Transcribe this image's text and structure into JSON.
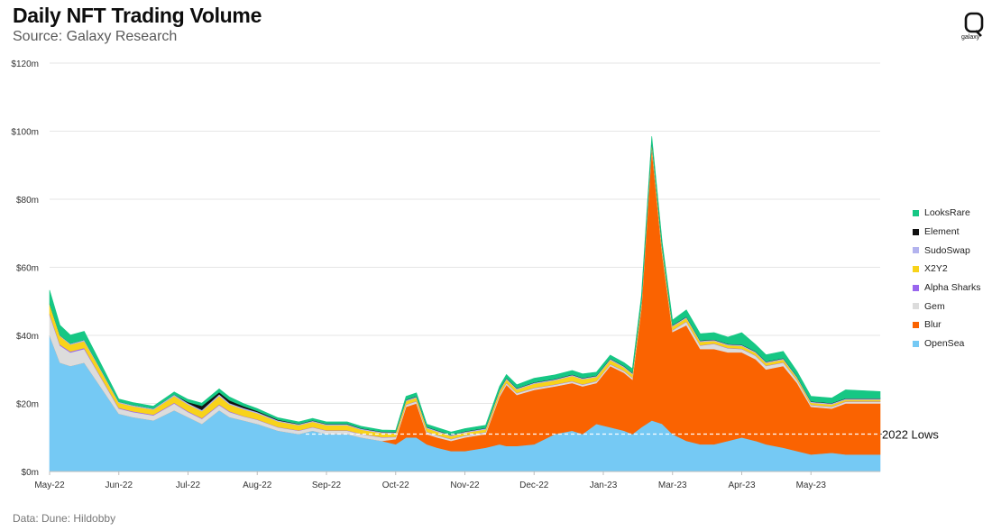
{
  "header": {
    "title": "Daily NFT Trading Volume",
    "subtitle": "Source: Galaxy Research"
  },
  "footer": {
    "data_source": "Data: Dune: Hildobby"
  },
  "logo": {
    "text": "galaxy",
    "icon": "galaxy-logo-icon"
  },
  "chart_data": {
    "type": "area",
    "stacked": true,
    "title": "Daily NFT Trading Volume",
    "subtitle": "Source: Galaxy Research",
    "xlabel": "",
    "ylabel": "",
    "x_tick_labels": [
      "May-22",
      "Jun-22",
      "Jul-22",
      "Aug-22",
      "Sep-22",
      "Oct-22",
      "Nov-22",
      "Dec-22",
      "Jan-23",
      "Mar-23",
      "Apr-23",
      "May-23"
    ],
    "y_tick_labels": [
      "$0m",
      "$20m",
      "$40m",
      "$60m",
      "$80m",
      "$100m",
      "$120m"
    ],
    "ylim": [
      0,
      120
    ],
    "y_unit": "$m",
    "grid": "horizontal",
    "legend_position": "right",
    "x_range": [
      0,
      12
    ],
    "x_ticks": [
      0,
      1,
      2,
      3,
      4,
      5,
      6,
      7,
      8,
      9,
      10,
      11
    ],
    "x": [
      0,
      0.15,
      0.3,
      0.5,
      0.7,
      1.0,
      1.2,
      1.5,
      1.8,
      2.0,
      2.2,
      2.45,
      2.6,
      2.8,
      3.0,
      3.3,
      3.6,
      3.8,
      4.0,
      4.3,
      4.5,
      4.8,
      5.0,
      5.15,
      5.3,
      5.45,
      5.6,
      5.8,
      6.0,
      6.3,
      6.5,
      6.6,
      6.75,
      7.0,
      7.3,
      7.55,
      7.7,
      7.9,
      8.1,
      8.3,
      8.42,
      8.55,
      8.7,
      8.85,
      9.0,
      9.2,
      9.4,
      9.6,
      9.8,
      10.0,
      10.2,
      10.35,
      10.6,
      10.8,
      11.0,
      11.3,
      11.5,
      12.0
    ],
    "series": [
      {
        "name": "OpenSea",
        "color": "#75c9f4",
        "values": [
          40,
          32,
          31,
          32,
          26,
          17,
          16,
          15,
          18,
          16,
          14,
          18,
          16,
          15,
          14,
          12,
          11,
          12,
          11,
          11,
          10,
          9,
          8,
          10,
          10,
          8,
          7,
          6,
          6,
          7,
          8,
          7.5,
          7.5,
          8,
          11,
          12,
          11,
          14,
          13,
          12,
          11,
          13,
          15,
          14,
          11,
          9,
          8,
          8,
          9,
          10,
          9,
          8,
          7,
          6,
          5,
          5.5,
          5,
          5
        ]
      },
      {
        "name": "Blur",
        "color": "#fa6301",
        "values": [
          0,
          0,
          0,
          0,
          0,
          0,
          0,
          0,
          0,
          0,
          0,
          0,
          0,
          0,
          0,
          0,
          0,
          0,
          0,
          0,
          0,
          0,
          1.5,
          9,
          10,
          3,
          3,
          3,
          4,
          4,
          14,
          18,
          15,
          16,
          14,
          14,
          14,
          12,
          18,
          17,
          16,
          35,
          80,
          50,
          30,
          34,
          28,
          28,
          26,
          25,
          24,
          22,
          24,
          20,
          14,
          13,
          15,
          15
        ]
      },
      {
        "name": "Gem",
        "color": "#dcdcdc",
        "values": [
          6,
          5,
          4,
          4,
          3,
          1.5,
          1.5,
          1.5,
          2,
          1.5,
          1.5,
          1.5,
          1.5,
          1.2,
          1.2,
          1,
          1,
          1,
          1,
          1,
          1,
          1,
          0.6,
          0.6,
          0.6,
          0.6,
          0.6,
          0.5,
          0.5,
          0.5,
          0.5,
          0.5,
          0.5,
          0.5,
          0.5,
          0.5,
          0.5,
          0.5,
          0.5,
          0.5,
          0.5,
          0.5,
          0.5,
          0.5,
          0.5,
          1,
          1,
          1.5,
          1.2,
          1,
          1,
          1,
          1,
          0.8,
          0.5,
          0.5,
          0.5,
          0.5
        ]
      },
      {
        "name": "Alpha Sharks",
        "color": "#9966ee",
        "values": [
          0.3,
          0.3,
          0.3,
          0.3,
          0.2,
          0.2,
          0.2,
          0.2,
          0.2,
          0.2,
          0.2,
          0.2,
          0.2,
          0.1,
          0.1,
          0.1,
          0.1,
          0.1,
          0.1,
          0.1,
          0.1,
          0.1,
          0.1,
          0.1,
          0.1,
          0.1,
          0.1,
          0.1,
          0.1,
          0.1,
          0.1,
          0.1,
          0.1,
          0.1,
          0.1,
          0.1,
          0.1,
          0.1,
          0.1,
          0.1,
          0.1,
          0.1,
          0.1,
          0.1,
          0.1,
          0.1,
          0.1,
          0.1,
          0.1,
          0.1,
          0.1,
          0.1,
          0.1,
          0.1,
          0.1,
          0.1,
          0.1,
          0.1
        ]
      },
      {
        "name": "X2Y2",
        "color": "#f8d31a",
        "values": [
          3,
          2.5,
          2,
          2,
          2,
          1.5,
          1.5,
          1.5,
          2,
          2,
          2,
          2.5,
          2,
          2,
          1.8,
          1.6,
          1.5,
          1.5,
          1.5,
          1.5,
          1.2,
          1.2,
          1,
          1,
          1,
          1,
          1,
          0.8,
          0.8,
          0.8,
          1,
          1,
          1,
          1.2,
          1.2,
          1.5,
          1.5,
          1.2,
          1.2,
          1,
          1,
          1,
          1,
          1,
          1,
          1,
          1,
          0.8,
          0.8,
          0.8,
          0.8,
          0.8,
          0.8,
          0.6,
          0.6,
          0.6,
          0.5,
          0.5
        ]
      },
      {
        "name": "SudoSwap",
        "color": "#b3b3ee",
        "values": [
          0,
          0.2,
          0.3,
          0.4,
          0.3,
          0.3,
          0.3,
          0.3,
          0.4,
          0.4,
          0.4,
          0.5,
          0.4,
          0.4,
          0.4,
          0.3,
          0.3,
          0.3,
          0.3,
          0.3,
          0.3,
          0.3,
          0.3,
          0.3,
          0.3,
          0.3,
          0.3,
          0.3,
          0.3,
          0.3,
          0.3,
          0.3,
          0.3,
          0.3,
          0.3,
          0.3,
          0.3,
          0.3,
          0.3,
          0.3,
          0.3,
          0.3,
          0.3,
          0.3,
          0.3,
          0.3,
          0.3,
          0.3,
          0.3,
          0.3,
          0.3,
          0.3,
          0.3,
          0.3,
          0.3,
          0.3,
          0.3,
          0.3
        ]
      },
      {
        "name": "Element",
        "color": "#111111",
        "values": [
          0,
          0,
          0,
          0,
          0,
          0,
          0,
          0,
          0,
          0.3,
          1.2,
          0.6,
          0.8,
          0.5,
          0.3,
          0.2,
          0.1,
          0.1,
          0.1,
          0.1,
          0.1,
          0.1,
          0.1,
          0.1,
          0.1,
          0.1,
          0.1,
          0.1,
          0.1,
          0.1,
          0.1,
          0.1,
          0.1,
          0.1,
          0.1,
          0.1,
          0.1,
          0.1,
          0.1,
          0.1,
          0.1,
          0.1,
          0.1,
          0.1,
          0.1,
          0.1,
          0.1,
          0.1,
          0.1,
          0.1,
          0.1,
          0.1,
          0.1,
          0.1,
          0.1,
          0.1,
          0.1,
          0.1
        ]
      },
      {
        "name": "LooksRare",
        "color": "#16c784",
        "values": [
          4,
          3,
          2.5,
          2.5,
          1.8,
          0.8,
          0.8,
          0.7,
          0.8,
          0.8,
          0.8,
          1,
          1,
          0.8,
          0.7,
          0.6,
          0.6,
          0.6,
          0.6,
          0.6,
          0.6,
          0.5,
          0.5,
          1,
          1,
          0.8,
          0.8,
          0.8,
          0.8,
          0.8,
          1,
          1,
          1,
          1.2,
          1.2,
          1.2,
          1.2,
          1,
          1,
          1,
          1.2,
          1.5,
          1.5,
          1.5,
          1.5,
          2,
          2,
          2,
          2,
          3.5,
          2,
          2,
          2,
          1.5,
          1.5,
          1.5,
          2.5,
          2
        ]
      }
    ],
    "annotations": [
      {
        "type": "hline",
        "value": 11,
        "x_from": 3.7,
        "style": "dashed",
        "color": "#ffffff",
        "label": "2022 Lows"
      }
    ]
  }
}
